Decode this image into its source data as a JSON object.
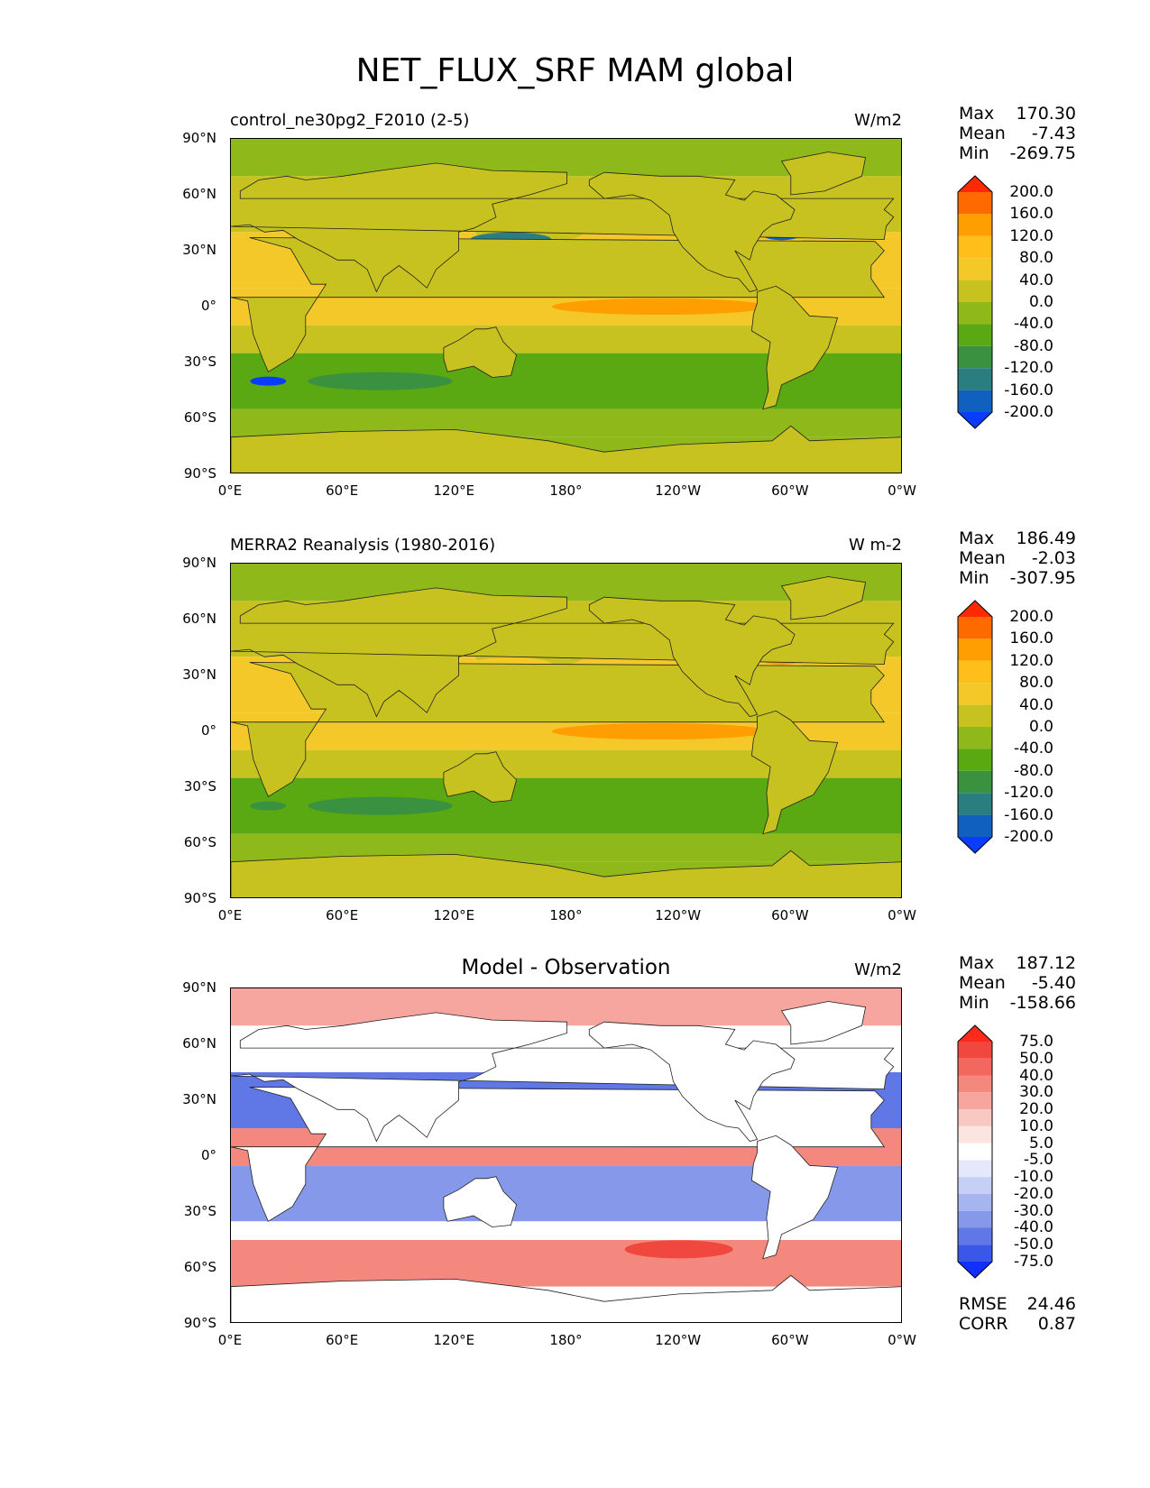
{
  "figure_title": "NET_FLUX_SRF MAM global",
  "x_ticks": [
    "0°E",
    "60°E",
    "120°E",
    "180°",
    "120°W",
    "60°W",
    "0°W"
  ],
  "y_ticks": [
    "90°N",
    "60°N",
    "30°N",
    "0°",
    "30°S",
    "60°S",
    "90°S"
  ],
  "panels": [
    {
      "title_left": "control_ne30pg2_F2010 (2-5)",
      "title_right": "W/m2",
      "title_center": "",
      "stats": {
        "max_label": "Max",
        "max": "170.30",
        "mean_label": "Mean",
        "mean": "-7.43",
        "min_label": "Min",
        "min": "-269.75"
      }
    },
    {
      "title_left": "MERRA2 Reanalysis (1980-2016)",
      "title_right": "W m-2",
      "title_center": "",
      "stats": {
        "max_label": "Max",
        "max": "186.49",
        "mean_label": "Mean",
        "mean": "-2.03",
        "min_label": "Min",
        "min": "-307.95"
      }
    },
    {
      "title_left": "",
      "title_right": "W/m2",
      "title_center": "Model - Observation",
      "stats": {
        "max_label": "Max",
        "max": "187.12",
        "mean_label": "Mean",
        "mean": "-5.40",
        "min_label": "Min",
        "min": "-158.66"
      },
      "rmse_label": "RMSE",
      "rmse": "24.46",
      "corr_label": "CORR",
      "corr": "0.87"
    }
  ],
  "colorbar_field": {
    "labels": [
      "200.0",
      "160.0",
      "120.0",
      "80.0",
      "40.0",
      "0.0",
      "-40.0",
      "-80.0",
      "-120.0",
      "-160.0",
      "-200.0"
    ],
    "colors": [
      "#ff2a00",
      "#ff6a00",
      "#ff9e00",
      "#ffbe1a",
      "#f5c82a",
      "#c7c220",
      "#8fb81a",
      "#5aa812",
      "#3a9240",
      "#2a7e80",
      "#1060c0",
      "#0a3cff"
    ]
  },
  "colorbar_diff": {
    "labels": [
      "75.0",
      "50.0",
      "40.0",
      "30.0",
      "20.0",
      "10.0",
      "5.0",
      "-5.0",
      "-10.0",
      "-20.0",
      "-30.0",
      "-40.0",
      "-50.0",
      "-75.0"
    ],
    "colors": [
      "#ff2a1a",
      "#f0473e",
      "#f2675e",
      "#f4877e",
      "#f6a69e",
      "#f9c8c2",
      "#fce4e0",
      "#ffffff",
      "#e4e8fa",
      "#c6cff5",
      "#a6b5f0",
      "#8598ea",
      "#5f78e6",
      "#3a58e8",
      "#1030ff"
    ]
  },
  "chart_data": [
    {
      "type": "heatmap",
      "title": "control_ne30pg2_F2010 (2-5)",
      "units": "W/m2",
      "x_range": [
        "0°E",
        "0°W"
      ],
      "y_range": [
        "90°S",
        "90°N"
      ],
      "contour_levels": [
        -200,
        -160,
        -120,
        -80,
        -40,
        0,
        40,
        80,
        120,
        160,
        200
      ],
      "max": 170.3,
      "mean": -7.43,
      "min": -269.75
    },
    {
      "type": "heatmap",
      "title": "MERRA2 Reanalysis (1980-2016)",
      "units": "W m-2",
      "x_range": [
        "0°E",
        "0°W"
      ],
      "y_range": [
        "90°S",
        "90°N"
      ],
      "contour_levels": [
        -200,
        -160,
        -120,
        -80,
        -40,
        0,
        40,
        80,
        120,
        160,
        200
      ],
      "max": 186.49,
      "mean": -2.03,
      "min": -307.95
    },
    {
      "type": "heatmap",
      "title": "Model - Observation",
      "units": "W/m2",
      "x_range": [
        "0°E",
        "0°W"
      ],
      "y_range": [
        "90°S",
        "90°N"
      ],
      "contour_levels": [
        -75,
        -50,
        -40,
        -30,
        -20,
        -10,
        -5,
        5,
        10,
        20,
        30,
        40,
        50,
        75
      ],
      "max": 187.12,
      "mean": -5.4,
      "min": -158.66,
      "rmse": 24.46,
      "corr": 0.87
    }
  ]
}
